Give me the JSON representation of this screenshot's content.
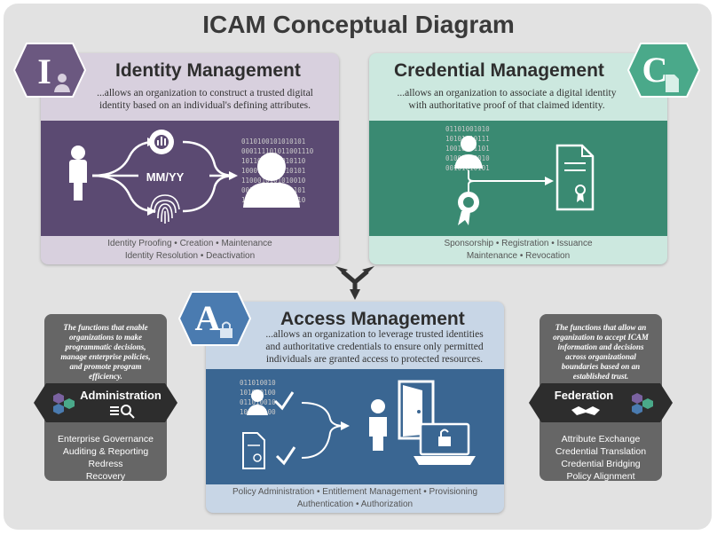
{
  "title": "ICAM Conceptual Diagram",
  "identity": {
    "letter": "I",
    "title": "Identity Management",
    "description_lines": [
      "...allows an organization to construct a trusted digital",
      "identity based on an individual's defining attributes."
    ],
    "date_label": "MM/YY",
    "binary_lines": [
      "0110100101010101",
      "000111101011001110",
      "1011010100010110",
      "1000101001110101",
      "1100010101010010",
      "0010101001010101",
      "1001010101001010"
    ],
    "functions_lines": [
      "Identity Proofing  •  Creation  •  Maintenance",
      "Identity Resolution  •  Deactivation"
    ]
  },
  "credential": {
    "letter": "C",
    "title": "Credential Management",
    "description_lines": [
      "...allows an organization to associate a digital identity",
      "with authoritative proof of that claimed identity."
    ],
    "binary_lines": [
      "01101001010",
      "10101010111",
      "10010101101",
      "01001010010",
      "00101010101"
    ],
    "functions_lines": [
      "Sponsorship  •  Registration  •  Issuance",
      "Maintenance  •  Revocation"
    ]
  },
  "access": {
    "letter": "A",
    "title": "Access Management",
    "description_lines": [
      "...allows an organization to leverage trusted identities",
      "and authoritative credentials to ensure only permitted",
      "individuals are granted access to protected resources."
    ],
    "binary_lines": [
      "011010010",
      "101010100",
      "011010010",
      "101010100"
    ],
    "functions_lines": [
      "Policy Administration • Entitlement Management • Provisioning",
      "Authentication  •  Authorization"
    ]
  },
  "administration": {
    "label": "Administration",
    "description_lines": [
      "The functions that enable",
      "organizations to make",
      "programmatic decisions,",
      "manage enterprise policies,",
      "and promote program",
      "efficiency."
    ],
    "items": [
      "Enterprise Governance",
      "Auditing & Reporting",
      "Redress",
      "Recovery"
    ]
  },
  "federation": {
    "label": "Federation",
    "description_lines": [
      "The functions that allow an",
      "organization to accept ICAM",
      "information and decisions",
      "across organizational",
      "boundaries based on an",
      "established trust."
    ],
    "items": [
      "Attribute Exchange",
      "Credential Translation",
      "Credential Bridging",
      "Policy Alignment"
    ]
  },
  "colors": {
    "identity": "#5b4a72",
    "credential": "#3a8a72",
    "access": "#3a6692",
    "side_panel": "#666666"
  }
}
